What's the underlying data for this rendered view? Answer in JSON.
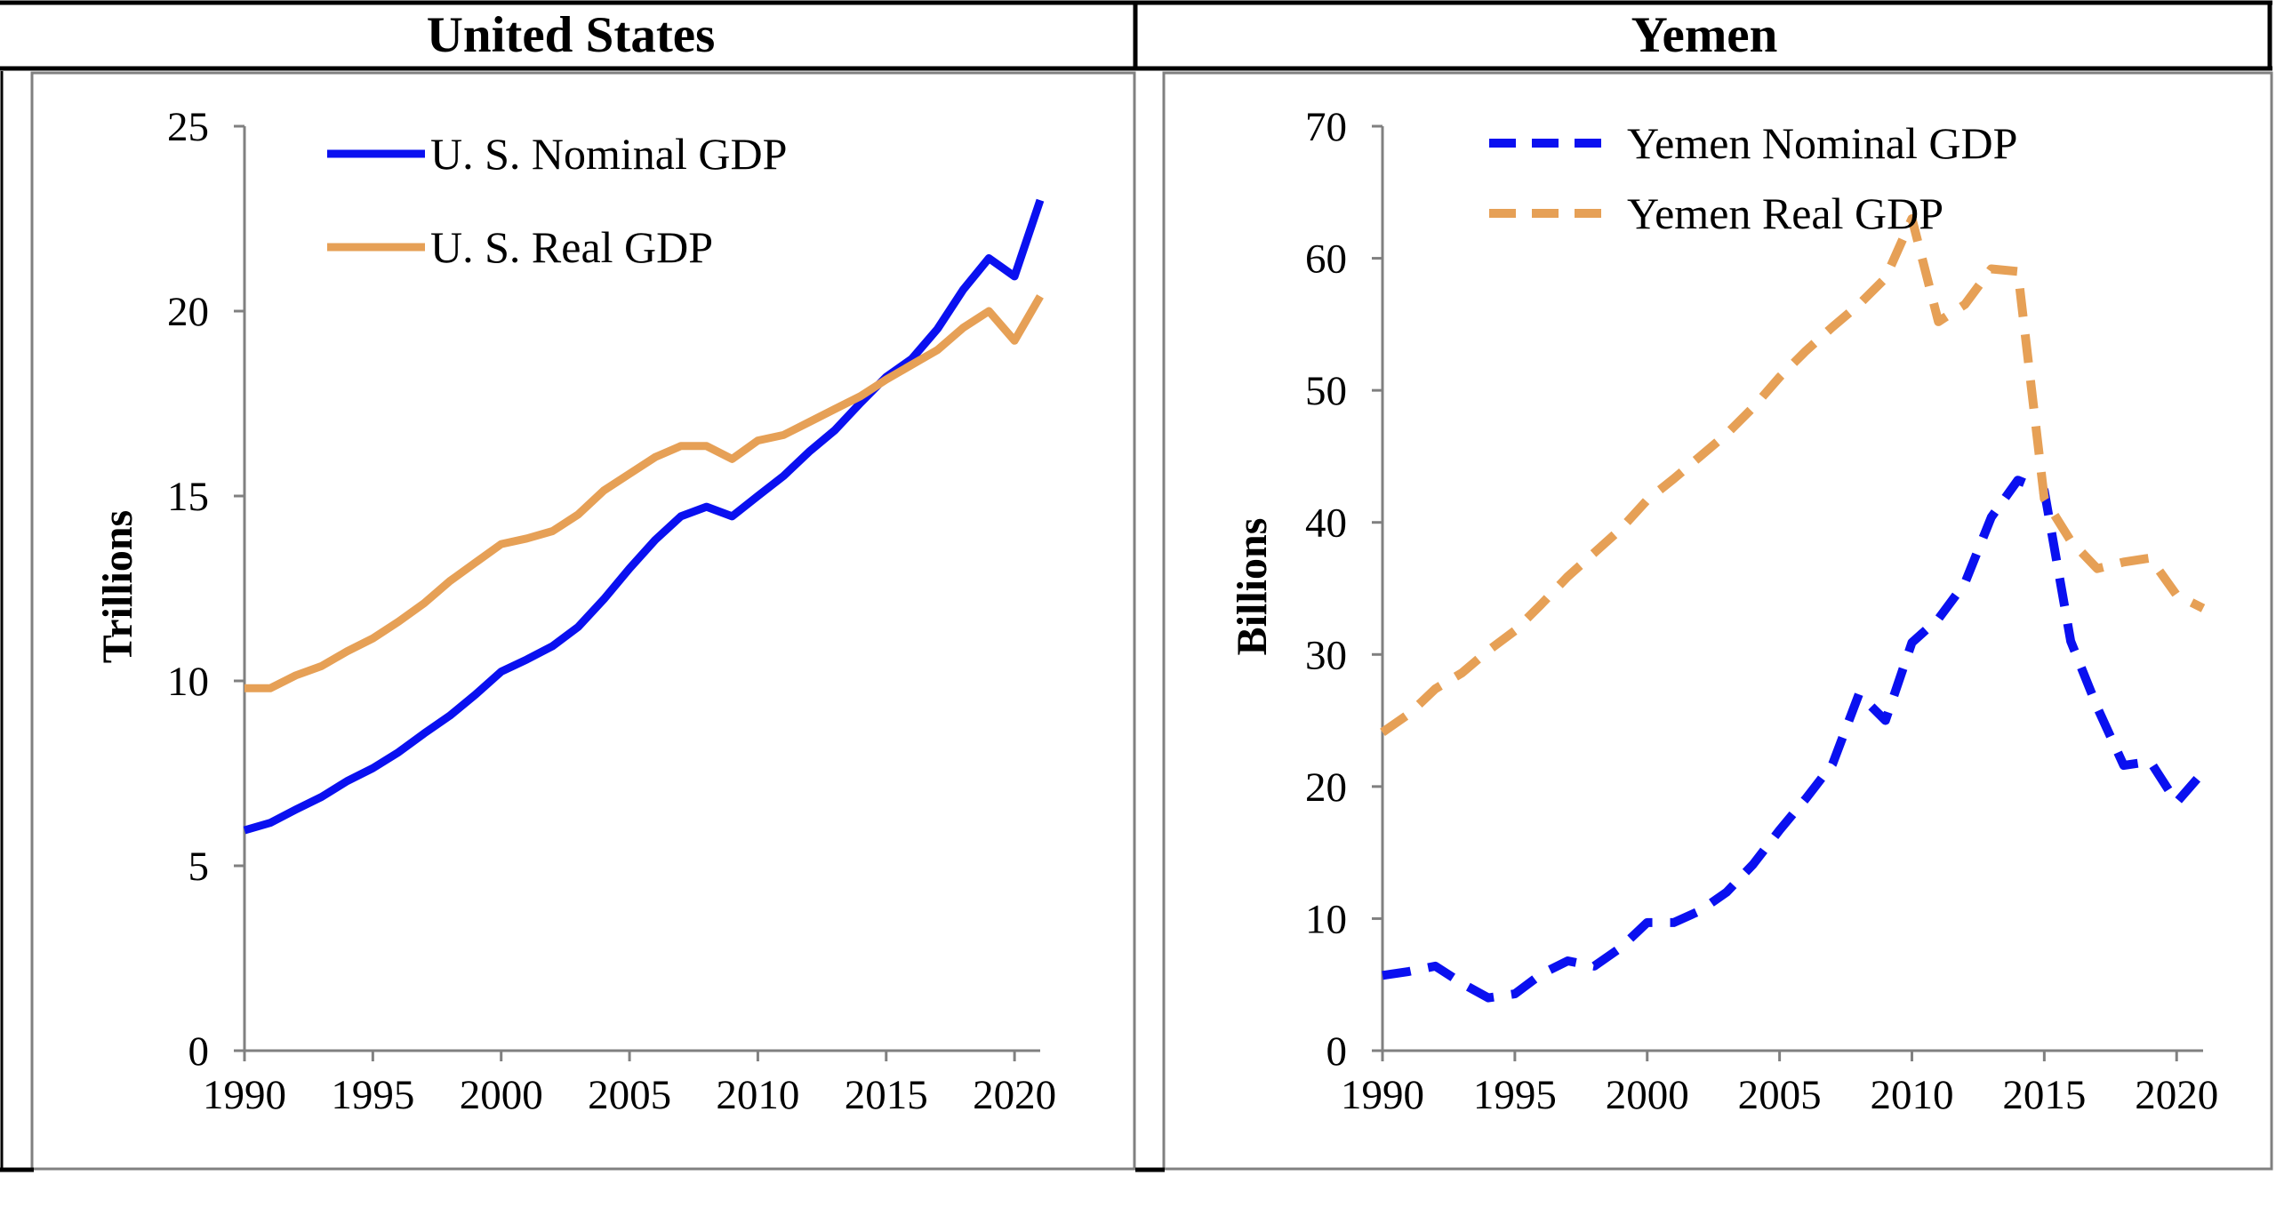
{
  "panels": [
    {
      "title": "United States"
    },
    {
      "title": "Yemen"
    }
  ],
  "colors": {
    "nominal": "#0a10f0",
    "real": "#e6a056",
    "frame": "#808080",
    "header": "#000000"
  },
  "chart_data": [
    {
      "type": "line",
      "title": "United States",
      "xlabel": "",
      "ylabel": "Trillions",
      "xlim": [
        1990,
        2021
      ],
      "ylim": [
        0,
        25
      ],
      "xticks": [
        1990,
        1995,
        2000,
        2005,
        2010,
        2015,
        2020
      ],
      "yticks": [
        0,
        5,
        10,
        15,
        20,
        25
      ],
      "legend_position": "top-left",
      "grid": false,
      "x": [
        1990,
        1991,
        1992,
        1993,
        1994,
        1995,
        1996,
        1997,
        1998,
        1999,
        2000,
        2001,
        2002,
        2003,
        2004,
        2005,
        2006,
        2007,
        2008,
        2009,
        2010,
        2011,
        2012,
        2013,
        2014,
        2015,
        2016,
        2017,
        2018,
        2019,
        2020,
        2021
      ],
      "series": [
        {
          "name": "U. S. Nominal GDP",
          "style": "solid",
          "color": "#0a10f0",
          "values": [
            5.96,
            6.16,
            6.52,
            6.86,
            7.29,
            7.64,
            8.07,
            8.58,
            9.06,
            9.63,
            10.25,
            10.58,
            10.94,
            11.46,
            12.21,
            13.04,
            13.81,
            14.45,
            14.71,
            14.45,
            15.0,
            15.54,
            16.2,
            16.78,
            17.52,
            18.22,
            18.71,
            19.52,
            20.58,
            21.43,
            20.94,
            23.0
          ]
        },
        {
          "name": "U. S. Real GDP",
          "style": "solid",
          "color": "#e6a056",
          "values": [
            9.8,
            9.8,
            10.15,
            10.4,
            10.8,
            11.15,
            11.6,
            12.1,
            12.7,
            13.2,
            13.7,
            13.85,
            14.05,
            14.5,
            15.15,
            15.6,
            16.05,
            16.35,
            16.35,
            16.0,
            16.5,
            16.65,
            17.0,
            17.35,
            17.7,
            18.15,
            18.55,
            18.95,
            19.55,
            20.0,
            19.2,
            20.4
          ]
        }
      ]
    },
    {
      "type": "line",
      "title": "Yemen",
      "xlabel": "",
      "ylabel": "Billions",
      "xlim": [
        1990,
        2021
      ],
      "ylim": [
        0,
        70
      ],
      "xticks": [
        1990,
        1995,
        2000,
        2005,
        2010,
        2015,
        2020
      ],
      "yticks": [
        0,
        10,
        20,
        30,
        40,
        50,
        60,
        70
      ],
      "legend_position": "top-left",
      "grid": false,
      "x": [
        1990,
        1991,
        1992,
        1993,
        1994,
        1995,
        1996,
        1997,
        1998,
        1999,
        2000,
        2001,
        2002,
        2003,
        2004,
        2005,
        2006,
        2007,
        2008,
        2009,
        2010,
        2011,
        2012,
        2013,
        2014,
        2015,
        2016,
        2017,
        2018,
        2019,
        2020,
        2021
      ],
      "series": [
        {
          "name": "Yemen Nominal GDP",
          "style": "dashed",
          "color": "#0a10f0",
          "values": [
            5.7,
            6.0,
            6.4,
            5.1,
            4.0,
            4.3,
            5.8,
            6.8,
            6.4,
            7.8,
            9.7,
            9.7,
            10.6,
            12.0,
            14.1,
            16.7,
            19.1,
            21.7,
            27.0,
            25.0,
            30.9,
            32.7,
            35.4,
            40.4,
            43.2,
            42.4,
            31.0,
            26.0,
            21.6,
            21.9,
            18.8,
            21.1
          ]
        },
        {
          "name": "Yemen Real GDP",
          "style": "dashed",
          "color": "#e6a056",
          "values": [
            24.1,
            25.5,
            27.4,
            28.6,
            30.3,
            31.8,
            33.8,
            35.9,
            37.7,
            39.5,
            41.7,
            43.3,
            45.0,
            46.7,
            48.7,
            51.0,
            53.0,
            54.8,
            56.5,
            58.5,
            63.0,
            55.2,
            56.5,
            59.2,
            59.0,
            41.8,
            38.6,
            36.5,
            37.0,
            37.3,
            34.5,
            33.5
          ]
        }
      ]
    }
  ]
}
